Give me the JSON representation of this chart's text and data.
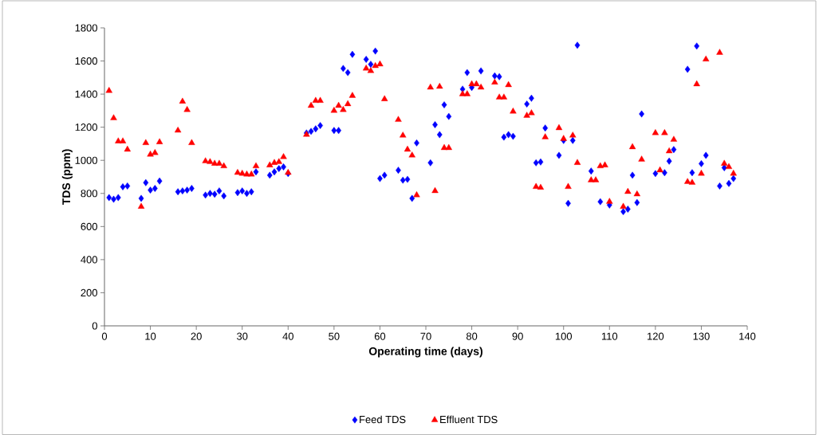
{
  "chart_data": {
    "type": "scatter",
    "xlabel": "Operating time (days)",
    "ylabel": "TDS (ppm)",
    "xlim": [
      0,
      140
    ],
    "ylim": [
      0,
      1800
    ],
    "xticks": [
      0,
      10,
      20,
      30,
      40,
      50,
      60,
      70,
      80,
      90,
      100,
      110,
      120,
      130,
      140
    ],
    "yticks": [
      0,
      200,
      400,
      600,
      800,
      1000,
      1200,
      1400,
      1600,
      1800
    ],
    "legend": "bottom",
    "series": [
      {
        "name": "Feed TDS",
        "color": "#0000ff",
        "marker": "diamond",
        "x": [
          1,
          2,
          3,
          4,
          5,
          8,
          9,
          10,
          11,
          12,
          16,
          17,
          18,
          19,
          22,
          23,
          24,
          25,
          26,
          29,
          30,
          31,
          32,
          33,
          36,
          37,
          38,
          39,
          40,
          44,
          45,
          46,
          47,
          50,
          51,
          52,
          53,
          54,
          57,
          58,
          59,
          60,
          61,
          64,
          65,
          66,
          67,
          68,
          71,
          72,
          73,
          74,
          75,
          78,
          79,
          80,
          82,
          85,
          86,
          87,
          88,
          89,
          92,
          93,
          94,
          95,
          96,
          99,
          100,
          101,
          102,
          103,
          106,
          108,
          110,
          113,
          114,
          115,
          116,
          117,
          120,
          122,
          123,
          124,
          127,
          128,
          129,
          130,
          131,
          134,
          135,
          136,
          137
        ],
        "values": [
          775,
          765,
          775,
          840,
          845,
          770,
          865,
          820,
          830,
          875,
          810,
          815,
          820,
          830,
          790,
          800,
          795,
          815,
          785,
          805,
          815,
          800,
          810,
          930,
          910,
          930,
          950,
          960,
          920,
          1165,
          1175,
          1190,
          1210,
          1180,
          1180,
          1555,
          1530,
          1640,
          1610,
          1580,
          1660,
          890,
          910,
          940,
          880,
          885,
          770,
          1105,
          985,
          1215,
          1155,
          1335,
          1265,
          1430,
          1530,
          1440,
          1540,
          1510,
          1505,
          1140,
          1155,
          1145,
          1340,
          1375,
          985,
          990,
          1195,
          1030,
          1120,
          740,
          1120,
          1695,
          935,
          750,
          730,
          690,
          705,
          910,
          745,
          1280,
          920,
          925,
          995,
          1065,
          1550,
          925,
          1690,
          980,
          1030,
          845,
          955,
          860,
          890
        ]
      },
      {
        "name": "Effluent TDS",
        "color": "#ff0000",
        "marker": "triangle",
        "x": [
          1,
          2,
          3,
          4,
          5,
          8,
          9,
          10,
          11,
          12,
          16,
          17,
          18,
          19,
          22,
          23,
          24,
          25,
          26,
          29,
          30,
          31,
          32,
          33,
          36,
          37,
          38,
          39,
          40,
          44,
          45,
          46,
          47,
          50,
          51,
          52,
          53,
          54,
          57,
          58,
          59,
          60,
          61,
          64,
          65,
          66,
          67,
          68,
          71,
          72,
          73,
          74,
          75,
          78,
          79,
          80,
          81,
          82,
          85,
          86,
          87,
          88,
          89,
          92,
          93,
          94,
          95,
          96,
          99,
          100,
          101,
          102,
          103,
          106,
          107,
          108,
          109,
          110,
          113,
          114,
          115,
          116,
          117,
          120,
          121,
          122,
          123,
          124,
          127,
          128,
          129,
          130,
          131,
          134,
          135,
          136,
          137
        ],
        "values": [
          1420,
          1255,
          1115,
          1115,
          1065,
          720,
          1105,
          1035,
          1045,
          1110,
          1180,
          1355,
          1305,
          1105,
          995,
          990,
          980,
          980,
          965,
          925,
          920,
          915,
          915,
          965,
          970,
          985,
          990,
          1020,
          925,
          1155,
          1330,
          1360,
          1360,
          1300,
          1330,
          1305,
          1340,
          1390,
          1555,
          1540,
          1570,
          1580,
          1370,
          1245,
          1150,
          1065,
          1030,
          790,
          1440,
          815,
          1445,
          1075,
          1075,
          1400,
          1400,
          1460,
          1460,
          1440,
          1470,
          1380,
          1380,
          1455,
          1295,
          1270,
          1285,
          840,
          835,
          1140,
          1195,
          1130,
          840,
          1150,
          985,
          880,
          880,
          965,
          970,
          750,
          720,
          810,
          1080,
          795,
          1005,
          1165,
          940,
          1165,
          1055,
          1125,
          870,
          865,
          1460,
          920,
          1610,
          1650,
          980,
          960,
          920
        ]
      }
    ]
  }
}
